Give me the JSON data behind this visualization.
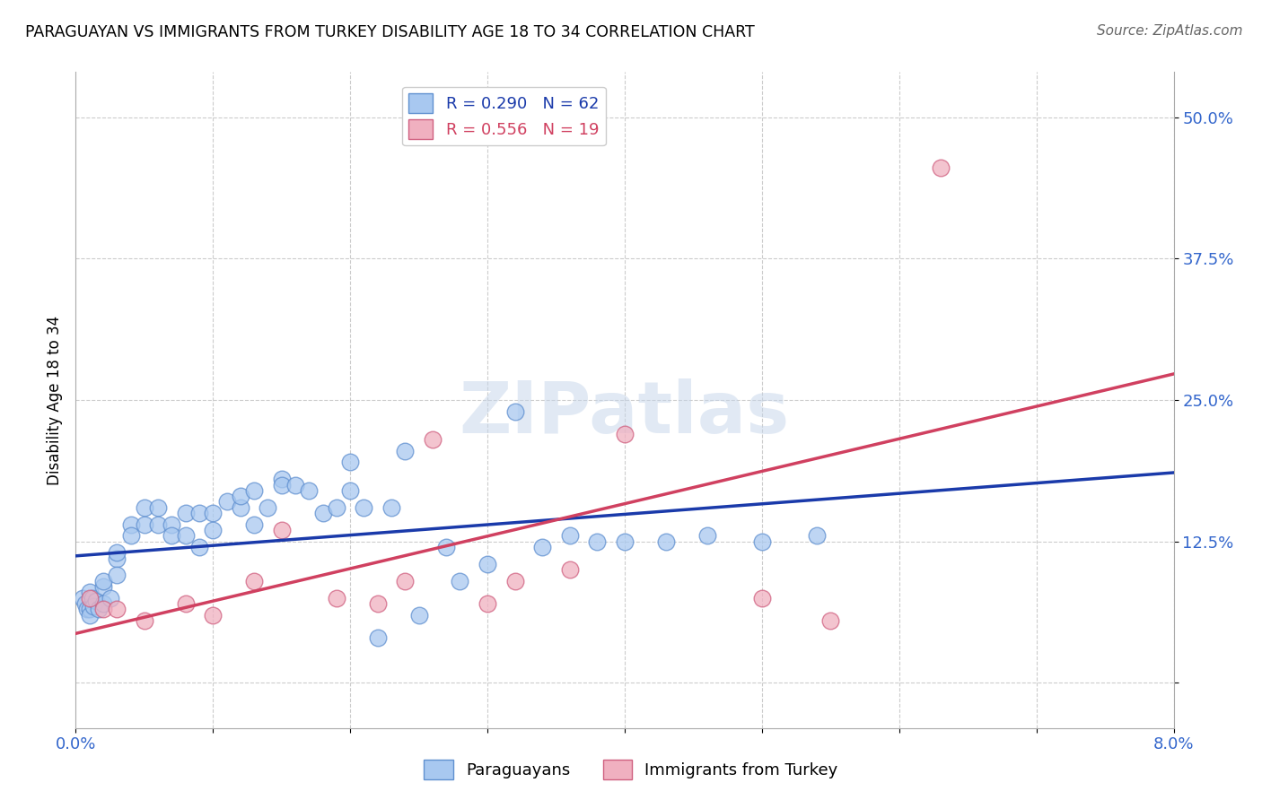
{
  "title": "PARAGUAYAN VS IMMIGRANTS FROM TURKEY DISABILITY AGE 18 TO 34 CORRELATION CHART",
  "source": "Source: ZipAtlas.com",
  "ylabel": "Disability Age 18 to 34",
  "xlim": [
    0.0,
    0.08
  ],
  "ylim": [
    -0.04,
    0.54
  ],
  "xticks": [
    0.0,
    0.01,
    0.02,
    0.03,
    0.04,
    0.05,
    0.06,
    0.07,
    0.08
  ],
  "xticklabels": [
    "0.0%",
    "",
    "",
    "",
    "",
    "",
    "",
    "",
    "8.0%"
  ],
  "yticks": [
    0.0,
    0.125,
    0.25,
    0.375,
    0.5
  ],
  "yticklabels": [
    "",
    "12.5%",
    "25.0%",
    "37.5%",
    "50.0%"
  ],
  "blue_color": "#a8c8f0",
  "pink_color": "#f0b0c0",
  "blue_edge_color": "#6090d0",
  "pink_edge_color": "#d06080",
  "blue_line_color": "#1a3aaa",
  "pink_line_color": "#d04060",
  "tick_color": "#3366cc",
  "blue_R": 0.29,
  "blue_N": 62,
  "pink_R": 0.556,
  "pink_N": 19,
  "watermark_text": "ZIPatlas",
  "paraguayan_x": [
    0.0005,
    0.0007,
    0.0008,
    0.001,
    0.001,
    0.001,
    0.0012,
    0.0013,
    0.0015,
    0.0017,
    0.002,
    0.002,
    0.002,
    0.0025,
    0.003,
    0.003,
    0.003,
    0.004,
    0.004,
    0.005,
    0.005,
    0.006,
    0.006,
    0.007,
    0.007,
    0.008,
    0.008,
    0.009,
    0.009,
    0.01,
    0.01,
    0.011,
    0.012,
    0.012,
    0.013,
    0.013,
    0.014,
    0.015,
    0.015,
    0.016,
    0.017,
    0.018,
    0.019,
    0.02,
    0.02,
    0.021,
    0.022,
    0.023,
    0.024,
    0.025,
    0.027,
    0.028,
    0.03,
    0.032,
    0.034,
    0.036,
    0.038,
    0.04,
    0.043,
    0.046,
    0.05,
    0.054
  ],
  "paraguayan_y": [
    0.075,
    0.07,
    0.065,
    0.08,
    0.065,
    0.06,
    0.075,
    0.068,
    0.072,
    0.065,
    0.085,
    0.09,
    0.07,
    0.075,
    0.11,
    0.115,
    0.095,
    0.14,
    0.13,
    0.155,
    0.14,
    0.155,
    0.14,
    0.14,
    0.13,
    0.15,
    0.13,
    0.15,
    0.12,
    0.15,
    0.135,
    0.16,
    0.155,
    0.165,
    0.17,
    0.14,
    0.155,
    0.18,
    0.175,
    0.175,
    0.17,
    0.15,
    0.155,
    0.195,
    0.17,
    0.155,
    0.04,
    0.155,
    0.205,
    0.06,
    0.12,
    0.09,
    0.105,
    0.24,
    0.12,
    0.13,
    0.125,
    0.125,
    0.125,
    0.13,
    0.125,
    0.13
  ],
  "turkey_x": [
    0.001,
    0.002,
    0.003,
    0.005,
    0.008,
    0.01,
    0.013,
    0.015,
    0.019,
    0.022,
    0.024,
    0.026,
    0.03,
    0.032,
    0.036,
    0.04,
    0.05,
    0.055,
    0.063
  ],
  "turkey_y": [
    0.075,
    0.065,
    0.065,
    0.055,
    0.07,
    0.06,
    0.09,
    0.135,
    0.075,
    0.07,
    0.09,
    0.215,
    0.07,
    0.09,
    0.1,
    0.22,
    0.075,
    0.055,
    0.455
  ]
}
